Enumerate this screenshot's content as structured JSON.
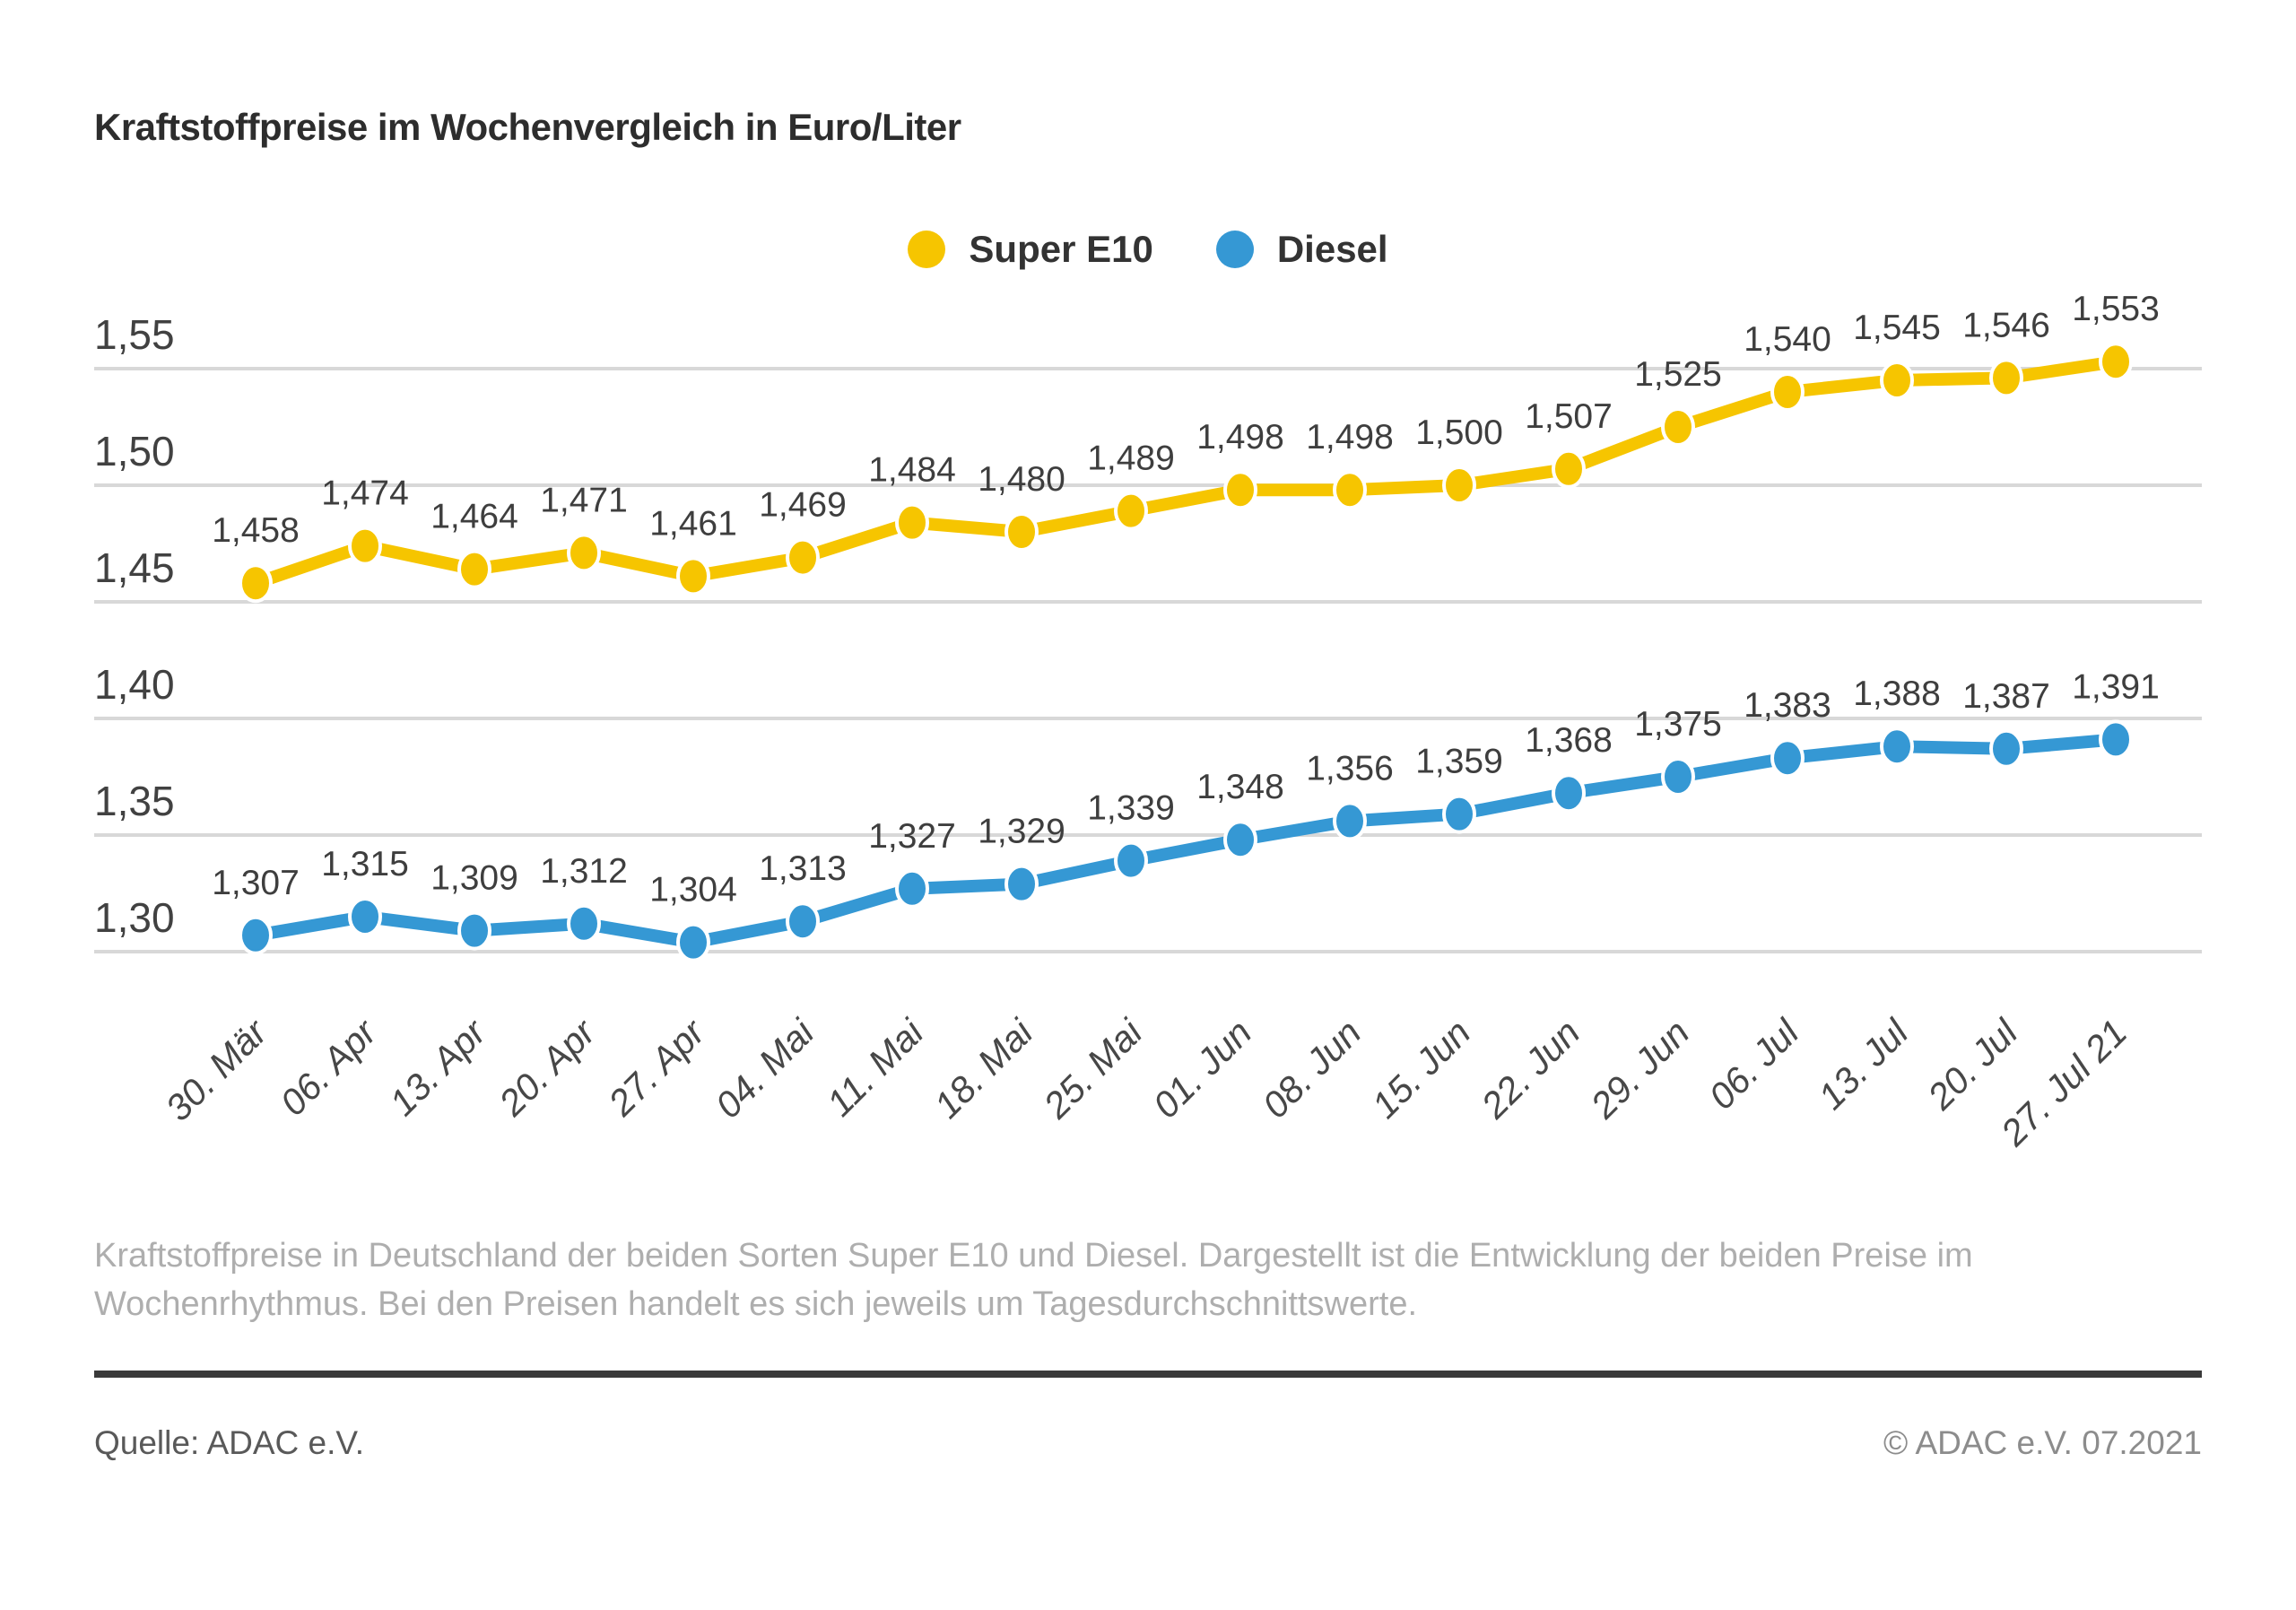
{
  "title": "Kraftstoffpreise im Wochenvergleich in Euro/Liter",
  "legend": [
    {
      "label": "Super E10",
      "color": "#F6C500"
    },
    {
      "label": "Diesel",
      "color": "#3598D4"
    }
  ],
  "chart_data": {
    "type": "line",
    "x": [
      "30. Mär",
      "06. Apr",
      "13. Apr",
      "20. Apr",
      "27. Apr",
      "04. Mai",
      "11. Mai",
      "18. Mai",
      "25. Mai",
      "01. Jun",
      "08. Jun",
      "15. Jun",
      "22. Jun",
      "29. Jun",
      "06. Jul",
      "13. Jul",
      "20. Jul",
      "27. Jul 21"
    ],
    "series": [
      {
        "name": "Super E10",
        "color": "#F6C500",
        "values": [
          1.458,
          1.474,
          1.464,
          1.471,
          1.461,
          1.469,
          1.484,
          1.48,
          1.489,
          1.498,
          1.498,
          1.5,
          1.507,
          1.525,
          1.54,
          1.545,
          1.546,
          1.553
        ]
      },
      {
        "name": "Diesel",
        "color": "#3598D4",
        "values": [
          1.307,
          1.315,
          1.309,
          1.312,
          1.304,
          1.313,
          1.327,
          1.329,
          1.339,
          1.348,
          1.356,
          1.359,
          1.368,
          1.375,
          1.383,
          1.388,
          1.387,
          1.391
        ]
      }
    ],
    "title": "Kraftstoffpreise im Wochenvergleich in Euro/Liter",
    "xlabel": "",
    "ylabel": "Euro/Liter",
    "yticks": [
      1.55,
      1.5,
      1.45,
      1.4,
      1.35,
      1.3
    ],
    "ylim": [
      1.28,
      1.57
    ],
    "grid": true,
    "legend_position": "top-center",
    "decimal_separator": ",",
    "gridline_color": "#d8d8d8"
  },
  "description": [
    "Kraftstoffpreise in Deutschland der beiden Sorten Super E10 und Diesel. Dargestellt ist die Entwicklung der beiden Preise im",
    "Wochenrhythmus. Bei den Preisen handelt es sich jeweils um Tagesdurchschnittswerte."
  ],
  "footer": {
    "source": "Quelle: ADAC e.V.",
    "copyright": "© ADAC e.V. 07.2021"
  }
}
